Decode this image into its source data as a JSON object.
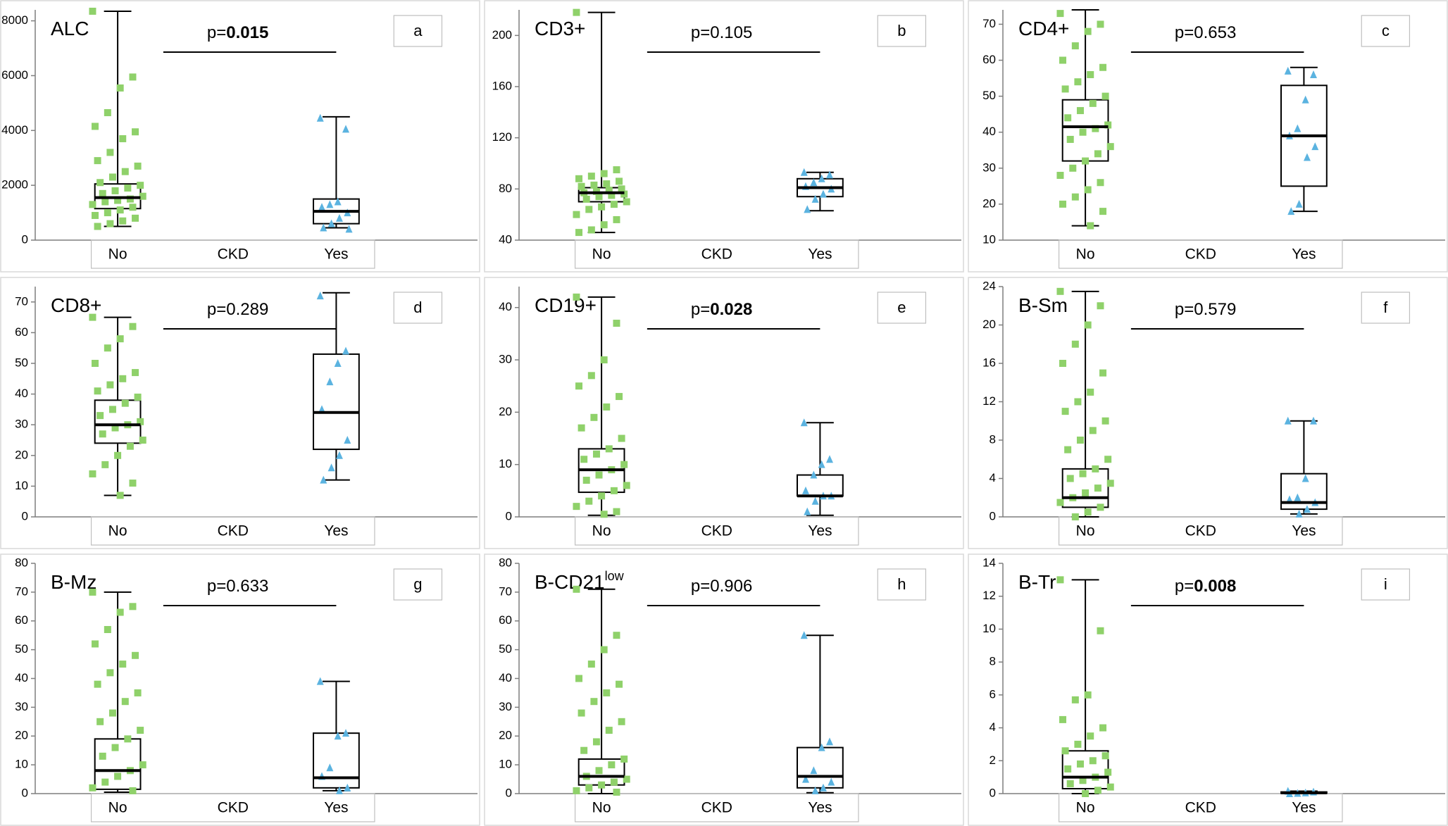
{
  "chart_data": [
    {
      "type": "box",
      "title": "ALC",
      "panel": "a",
      "p_label": "p=",
      "p_value": "0.015",
      "p_bold": true,
      "xlabel": "CKD",
      "categories": [
        "No",
        "Yes"
      ],
      "ylim": [
        0,
        8400
      ],
      "yticks": [
        0,
        2000,
        4000,
        6000,
        8000
      ],
      "boxes": [
        {
          "min": 500,
          "q1": 1150,
          "median": 1550,
          "q3": 2050,
          "max": 8350
        },
        {
          "min": 450,
          "q1": 600,
          "median": 1050,
          "q3": 1500,
          "max": 4500
        }
      ],
      "series": [
        {
          "color": "#8fd16a",
          "marker": "square",
          "values": [
            8350,
            5950,
            5550,
            4650,
            4150,
            3950,
            3700,
            3200,
            2900,
            2700,
            2500,
            2300,
            2100,
            2000,
            1900,
            1800,
            1700,
            1600,
            1500,
            1450,
            1400,
            1300,
            1200,
            1100,
            1000,
            900,
            800,
            700,
            600,
            500
          ]
        },
        {
          "color": "#5bb3e0",
          "marker": "triangle",
          "values": [
            4450,
            4050,
            1400,
            1300,
            1200,
            1000,
            800,
            600,
            450,
            400
          ]
        }
      ]
    },
    {
      "type": "box",
      "title": "CD3+",
      "panel": "b",
      "p_label": "p=",
      "p_value": "0.105",
      "p_bold": false,
      "xlabel": "CKD",
      "categories": [
        "No",
        "Yes"
      ],
      "ylim": [
        40,
        220
      ],
      "yticks": [
        40,
        80,
        120,
        160,
        200
      ],
      "boxes": [
        {
          "min": 46,
          "q1": 70,
          "median": 77,
          "q3": 81,
          "max": 218
        },
        {
          "min": 63,
          "q1": 74,
          "median": 81,
          "q3": 88,
          "max": 93
        }
      ],
      "series": [
        {
          "color": "#8fd16a",
          "marker": "square",
          "values": [
            218,
            95,
            92,
            90,
            88,
            86,
            84,
            83,
            82,
            80,
            79,
            78,
            77,
            76,
            75,
            74,
            72,
            70,
            68,
            66,
            64,
            60,
            56,
            52,
            48,
            46
          ]
        },
        {
          "color": "#5bb3e0",
          "marker": "triangle",
          "values": [
            93,
            91,
            88,
            85,
            82,
            80,
            76,
            72,
            64
          ]
        }
      ]
    },
    {
      "type": "box",
      "title": "CD4+",
      "panel": "c",
      "p_label": "p=",
      "p_value": "0.653",
      "p_bold": false,
      "xlabel": "CKD",
      "categories": [
        "No",
        "Yes"
      ],
      "ylim": [
        10,
        74
      ],
      "yticks": [
        10,
        20,
        30,
        40,
        50,
        60,
        70
      ],
      "boxes": [
        {
          "min": 14,
          "q1": 32,
          "median": 41.5,
          "q3": 49,
          "max": 74
        },
        {
          "min": 18,
          "q1": 25,
          "median": 39,
          "q3": 53,
          "max": 58
        }
      ],
      "series": [
        {
          "color": "#8fd16a",
          "marker": "square",
          "values": [
            73,
            70,
            68,
            64,
            60,
            58,
            56,
            54,
            52,
            50,
            48,
            46,
            44,
            42,
            41,
            40,
            38,
            36,
            34,
            32,
            30,
            28,
            26,
            24,
            22,
            20,
            18,
            14
          ]
        },
        {
          "color": "#5bb3e0",
          "marker": "triangle",
          "values": [
            57,
            56,
            49,
            41,
            39,
            36,
            33,
            20,
            18
          ]
        }
      ]
    },
    {
      "type": "box",
      "title": "CD8+",
      "panel": "d",
      "p_label": "p=",
      "p_value": "0.289",
      "p_bold": false,
      "xlabel": "CKD",
      "categories": [
        "No",
        "Yes"
      ],
      "ylim": [
        0,
        75
      ],
      "yticks": [
        0,
        10,
        20,
        30,
        40,
        50,
        60,
        70
      ],
      "boxes": [
        {
          "min": 7,
          "q1": 24,
          "median": 30,
          "q3": 38,
          "max": 65
        },
        {
          "min": 12,
          "q1": 22,
          "median": 34,
          "q3": 53,
          "max": 73
        }
      ],
      "series": [
        {
          "color": "#8fd16a",
          "marker": "square",
          "values": [
            65,
            62,
            58,
            55,
            50,
            47,
            45,
            43,
            41,
            39,
            37,
            35,
            33,
            31,
            30,
            29,
            27,
            25,
            23,
            20,
            17,
            14,
            11,
            7
          ]
        },
        {
          "color": "#5bb3e0",
          "marker": "triangle",
          "values": [
            72,
            54,
            50,
            44,
            35,
            25,
            20,
            16,
            12
          ]
        }
      ]
    },
    {
      "type": "box",
      "title": "CD19+",
      "panel": "e",
      "p_label": "p=",
      "p_value": "0.028",
      "p_bold": true,
      "xlabel": "CKD",
      "categories": [
        "No",
        "Yes"
      ],
      "ylim": [
        0,
        44
      ],
      "yticks": [
        0,
        10,
        20,
        30,
        40
      ],
      "boxes": [
        {
          "min": 0.3,
          "q1": 4.7,
          "median": 9,
          "q3": 13,
          "max": 42
        },
        {
          "min": 0.3,
          "q1": 4,
          "median": 4,
          "q3": 8,
          "max": 18
        }
      ],
      "series": [
        {
          "color": "#8fd16a",
          "marker": "square",
          "values": [
            42,
            37,
            30,
            27,
            25,
            23,
            21,
            19,
            17,
            15,
            13,
            12,
            11,
            10,
            9,
            8,
            7,
            6,
            5,
            4,
            3,
            2,
            1,
            0.5
          ]
        },
        {
          "color": "#5bb3e0",
          "marker": "triangle",
          "values": [
            18,
            11,
            10,
            8,
            5,
            4,
            4,
            3,
            1
          ]
        }
      ]
    },
    {
      "type": "box",
      "title": "B-Sm",
      "panel": "f",
      "p_label": "p=",
      "p_value": "0.579",
      "p_bold": false,
      "xlabel": "CKD",
      "categories": [
        "No",
        "Yes"
      ],
      "ylim": [
        0,
        24
      ],
      "yticks": [
        0,
        4,
        8,
        12,
        16,
        20,
        24
      ],
      "boxes": [
        {
          "min": 0,
          "q1": 1,
          "median": 2,
          "q3": 5,
          "max": 23.5
        },
        {
          "min": 0.3,
          "q1": 0.8,
          "median": 1.5,
          "q3": 4.5,
          "max": 10
        }
      ],
      "series": [
        {
          "color": "#8fd16a",
          "marker": "square",
          "values": [
            23.5,
            22,
            20,
            18,
            16,
            15,
            13,
            12,
            11,
            10,
            9,
            8,
            7,
            6,
            5,
            4.5,
            4,
            3.5,
            3,
            2.5,
            2,
            1.5,
            1,
            0.5,
            0
          ]
        },
        {
          "color": "#5bb3e0",
          "marker": "triangle",
          "values": [
            10,
            10,
            4,
            2,
            1.8,
            1.5,
            0.8,
            0.3
          ]
        }
      ]
    },
    {
      "type": "box",
      "title": "B-Mz",
      "panel": "g",
      "p_label": "p=",
      "p_value": "0.633",
      "p_bold": false,
      "xlabel": "CKD",
      "categories": [
        "No",
        "Yes"
      ],
      "ylim": [
        0,
        80
      ],
      "yticks": [
        0,
        10,
        20,
        30,
        40,
        50,
        60,
        70,
        80
      ],
      "boxes": [
        {
          "min": 0.5,
          "q1": 1.5,
          "median": 8,
          "q3": 19,
          "max": 70
        },
        {
          "min": 1,
          "q1": 2,
          "median": 5.5,
          "q3": 21,
          "max": 39
        }
      ],
      "series": [
        {
          "color": "#8fd16a",
          "marker": "square",
          "values": [
            70,
            65,
            63,
            57,
            52,
            48,
            45,
            42,
            38,
            35,
            32,
            28,
            25,
            22,
            19,
            16,
            13,
            10,
            8,
            6,
            4,
            2,
            1
          ]
        },
        {
          "color": "#5bb3e0",
          "marker": "triangle",
          "values": [
            39,
            21,
            20,
            9,
            6,
            2,
            1
          ]
        }
      ]
    },
    {
      "type": "box",
      "title": "B-CD21",
      "title_sup": "low",
      "panel": "h",
      "p_label": "p=",
      "p_value": "0.906",
      "p_bold": false,
      "xlabel": "CKD",
      "categories": [
        "No",
        "Yes"
      ],
      "ylim": [
        0,
        80
      ],
      "yticks": [
        0,
        10,
        20,
        30,
        40,
        50,
        60,
        70,
        80
      ],
      "boxes": [
        {
          "min": 0,
          "q1": 3,
          "median": 6,
          "q3": 12,
          "max": 71
        },
        {
          "min": 0.3,
          "q1": 2,
          "median": 6,
          "q3": 16,
          "max": 55
        }
      ],
      "series": [
        {
          "color": "#8fd16a",
          "marker": "square",
          "values": [
            71,
            55,
            50,
            45,
            40,
            38,
            35,
            32,
            28,
            25,
            22,
            18,
            15,
            12,
            10,
            8,
            6,
            5,
            4,
            3,
            2,
            1,
            0.5
          ]
        },
        {
          "color": "#5bb3e0",
          "marker": "triangle",
          "values": [
            55,
            18,
            16,
            8,
            5,
            4,
            2,
            1
          ]
        }
      ]
    },
    {
      "type": "box",
      "title": "B-Tr",
      "panel": "i",
      "p_label": "p=",
      "p_value": "0.008",
      "p_bold": true,
      "xlabel": "CKD",
      "categories": [
        "No",
        "Yes"
      ],
      "ylim": [
        0,
        14
      ],
      "yticks": [
        0,
        2,
        4,
        6,
        8,
        10,
        12,
        14
      ],
      "boxes": [
        {
          "min": 0,
          "q1": 0.3,
          "median": 1,
          "q3": 2.6,
          "max": 13
        },
        {
          "min": 0,
          "q1": 0.02,
          "median": 0.05,
          "q3": 0.1,
          "max": 0.15
        }
      ],
      "series": [
        {
          "color": "#8fd16a",
          "marker": "square",
          "values": [
            13,
            9.9,
            6,
            5.7,
            4.5,
            4,
            3.5,
            3,
            2.6,
            2.3,
            2,
            1.8,
            1.5,
            1.3,
            1,
            0.8,
            0.6,
            0.4,
            0.2,
            0
          ]
        },
        {
          "color": "#5bb3e0",
          "marker": "triangle",
          "values": [
            0.15,
            0.1,
            0.05,
            0.02,
            0
          ]
        }
      ]
    }
  ]
}
